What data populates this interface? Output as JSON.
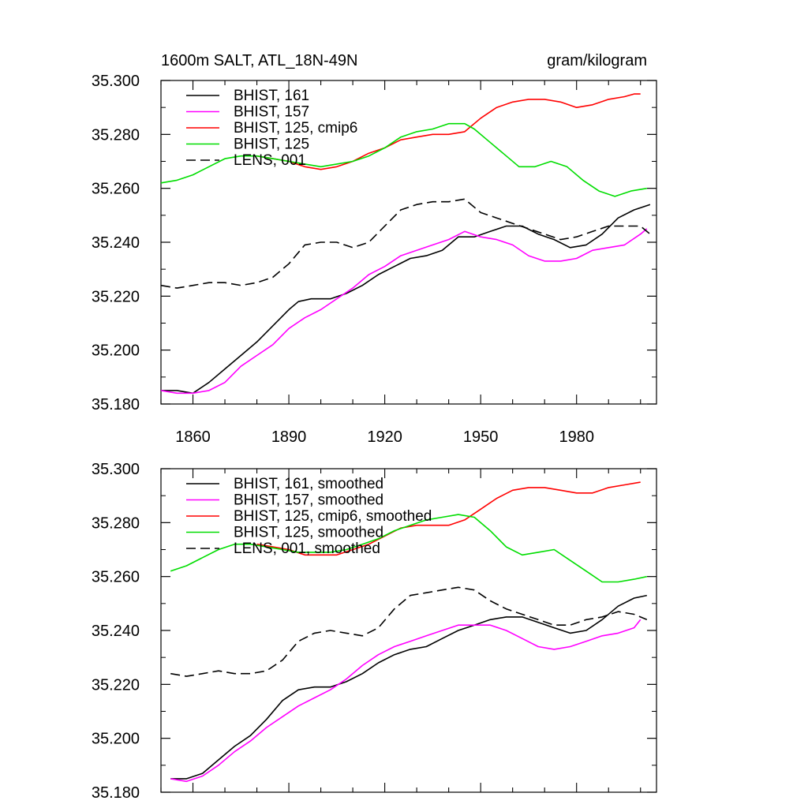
{
  "chart_data": [
    {
      "type": "line",
      "title_left": "1600m SALT, ATL_18N-49N",
      "title_right": "gram/kilogram",
      "xlim": [
        1850,
        2005
      ],
      "ylim": [
        35.18,
        35.3
      ],
      "yticks": [
        "35.180",
        "35.200",
        "35.220",
        "35.240",
        "35.260",
        "35.280",
        "35.300"
      ],
      "xticks": [
        "1860",
        "1890",
        "1920",
        "1950",
        "1980"
      ],
      "series": [
        {
          "name": "BHIST, 161",
          "color": "#000000",
          "dash": false,
          "x": [
            1850,
            1855,
            1860,
            1865,
            1870,
            1875,
            1880,
            1885,
            1890,
            1893,
            1897,
            1900,
            1903,
            1908,
            1913,
            1918,
            1923,
            1928,
            1933,
            1938,
            1943,
            1948,
            1953,
            1958,
            1963,
            1968,
            1973,
            1978,
            1983,
            1988,
            1993,
            1998,
            2003
          ],
          "y": [
            35.185,
            35.185,
            35.184,
            35.188,
            35.193,
            35.198,
            35.203,
            35.209,
            35.215,
            35.218,
            35.219,
            35.219,
            35.219,
            35.221,
            35.224,
            35.228,
            35.231,
            35.234,
            35.235,
            35.237,
            35.242,
            35.242,
            35.244,
            35.246,
            35.246,
            35.243,
            35.241,
            35.238,
            35.239,
            35.243,
            35.249,
            35.252,
            35.254
          ]
        },
        {
          "name": "BHIST, 157",
          "color": "#ff00ff",
          "dash": false,
          "x": [
            1850,
            1855,
            1860,
            1865,
            1870,
            1875,
            1880,
            1885,
            1890,
            1895,
            1900,
            1905,
            1910,
            1915,
            1920,
            1925,
            1930,
            1935,
            1940,
            1945,
            1950,
            1955,
            1960,
            1965,
            1970,
            1975,
            1980,
            1985,
            1990,
            1995,
            2000,
            2002
          ],
          "y": [
            35.185,
            35.184,
            35.184,
            35.185,
            35.188,
            35.194,
            35.198,
            35.202,
            35.208,
            35.212,
            35.215,
            35.219,
            35.223,
            35.228,
            35.231,
            35.235,
            35.237,
            35.239,
            35.241,
            35.244,
            35.242,
            35.241,
            35.239,
            35.235,
            35.233,
            35.233,
            35.234,
            35.237,
            35.238,
            35.239,
            35.243,
            35.245
          ]
        },
        {
          "name": "BHIST, 125, cmip6",
          "color": "#ff0000",
          "dash": false,
          "x": [
            1880,
            1885,
            1890,
            1895,
            1900,
            1905,
            1910,
            1915,
            1920,
            1925,
            1930,
            1935,
            1940,
            1945,
            1950,
            1955,
            1960,
            1965,
            1970,
            1975,
            1980,
            1985,
            1990,
            1995,
            1998,
            2000
          ],
          "y": [
            35.272,
            35.271,
            35.27,
            35.268,
            35.267,
            35.268,
            35.27,
            35.273,
            35.275,
            35.278,
            35.279,
            35.28,
            35.28,
            35.281,
            35.286,
            35.29,
            35.292,
            35.293,
            35.293,
            35.292,
            35.29,
            35.291,
            35.293,
            35.294,
            35.295,
            35.295
          ]
        },
        {
          "name": "BHIST, 125",
          "color": "#00dd00",
          "dash": false,
          "x": [
            1850,
            1855,
            1860,
            1865,
            1870,
            1875,
            1880,
            1885,
            1890,
            1895,
            1900,
            1905,
            1910,
            1915,
            1920,
            1925,
            1930,
            1935,
            1940,
            1945,
            1948,
            1952,
            1957,
            1962,
            1967,
            1972,
            1977,
            1982,
            1987,
            1992,
            1997,
            2002
          ],
          "y": [
            35.262,
            35.263,
            35.265,
            35.268,
            35.271,
            35.272,
            35.272,
            35.271,
            35.27,
            35.269,
            35.268,
            35.269,
            35.27,
            35.272,
            35.275,
            35.279,
            35.281,
            35.282,
            35.284,
            35.284,
            35.282,
            35.278,
            35.273,
            35.268,
            35.268,
            35.27,
            35.268,
            35.263,
            35.259,
            35.257,
            35.259,
            35.26
          ]
        },
        {
          "name": "LENS, 001",
          "color": "#000000",
          "dash": true,
          "x": [
            1850,
            1855,
            1860,
            1865,
            1870,
            1875,
            1880,
            1885,
            1890,
            1895,
            1900,
            1905,
            1910,
            1915,
            1920,
            1925,
            1930,
            1935,
            1940,
            1945,
            1950,
            1955,
            1960,
            1965,
            1970,
            1975,
            1980,
            1985,
            1990,
            1995,
            2000,
            2003
          ],
          "y": [
            35.224,
            35.223,
            35.224,
            35.225,
            35.225,
            35.224,
            35.225,
            35.227,
            35.232,
            35.239,
            35.24,
            35.24,
            35.238,
            35.24,
            35.246,
            35.252,
            35.254,
            35.255,
            35.255,
            35.256,
            35.251,
            35.249,
            35.247,
            35.245,
            35.243,
            35.241,
            35.242,
            35.244,
            35.246,
            35.246,
            35.246,
            35.243
          ]
        }
      ]
    },
    {
      "type": "line",
      "xlim": [
        1850,
        2005
      ],
      "ylim": [
        35.18,
        35.3
      ],
      "yticks": [
        "35.180",
        "35.200",
        "35.220",
        "35.240",
        "35.260",
        "35.280",
        "35.300"
      ],
      "series": [
        {
          "name": "BHIST, 161, smoothed",
          "color": "#000000",
          "dash": false,
          "x": [
            1853,
            1858,
            1863,
            1868,
            1873,
            1878,
            1883,
            1888,
            1893,
            1898,
            1903,
            1908,
            1913,
            1918,
            1923,
            1928,
            1933,
            1938,
            1943,
            1948,
            1953,
            1958,
            1963,
            1968,
            1973,
            1978,
            1983,
            1988,
            1993,
            1998,
            2002
          ],
          "y": [
            35.185,
            35.185,
            35.187,
            35.192,
            35.197,
            35.201,
            35.207,
            35.214,
            35.218,
            35.219,
            35.219,
            35.221,
            35.224,
            35.228,
            35.231,
            35.233,
            35.234,
            35.237,
            35.24,
            35.242,
            35.244,
            35.245,
            35.245,
            35.243,
            35.241,
            35.239,
            35.24,
            35.244,
            35.249,
            35.252,
            35.253
          ]
        },
        {
          "name": "BHIST, 157, smoothed",
          "color": "#ff00ff",
          "dash": false,
          "x": [
            1853,
            1858,
            1863,
            1868,
            1873,
            1878,
            1883,
            1888,
            1893,
            1898,
            1903,
            1908,
            1913,
            1918,
            1923,
            1928,
            1933,
            1938,
            1943,
            1948,
            1953,
            1958,
            1963,
            1968,
            1973,
            1978,
            1983,
            1988,
            1993,
            1998,
            2000
          ],
          "y": [
            35.185,
            35.184,
            35.186,
            35.19,
            35.195,
            35.199,
            35.204,
            35.208,
            35.212,
            35.215,
            35.218,
            35.222,
            35.227,
            35.231,
            35.234,
            35.236,
            35.238,
            35.24,
            35.242,
            35.242,
            35.242,
            35.24,
            35.237,
            35.234,
            35.233,
            35.234,
            35.236,
            35.238,
            35.239,
            35.241,
            35.244
          ]
        },
        {
          "name": "BHIST, 125, cmip6, smoothed",
          "color": "#ff0000",
          "dash": false,
          "x": [
            1880,
            1885,
            1890,
            1895,
            1900,
            1905,
            1910,
            1915,
            1920,
            1925,
            1930,
            1935,
            1940,
            1945,
            1950,
            1955,
            1960,
            1965,
            1970,
            1975,
            1980,
            1985,
            1990,
            1995,
            2000
          ],
          "y": [
            35.272,
            35.271,
            35.27,
            35.268,
            35.268,
            35.268,
            35.27,
            35.272,
            35.275,
            35.278,
            35.279,
            35.279,
            35.279,
            35.281,
            35.285,
            35.289,
            35.292,
            35.293,
            35.293,
            35.292,
            35.291,
            35.291,
            35.293,
            35.294,
            35.295
          ]
        },
        {
          "name": "BHIST, 125, smoothed",
          "color": "#00dd00",
          "dash": false,
          "x": [
            1853,
            1858,
            1863,
            1868,
            1873,
            1878,
            1883,
            1888,
            1893,
            1898,
            1903,
            1908,
            1913,
            1918,
            1923,
            1928,
            1933,
            1938,
            1943,
            1948,
            1953,
            1958,
            1963,
            1968,
            1973,
            1978,
            1983,
            1988,
            1993,
            1998,
            2002
          ],
          "y": [
            35.262,
            35.264,
            35.267,
            35.27,
            35.272,
            35.272,
            35.271,
            35.27,
            35.269,
            35.269,
            35.269,
            35.27,
            35.272,
            35.274,
            35.277,
            35.279,
            35.281,
            35.282,
            35.283,
            35.282,
            35.277,
            35.271,
            35.268,
            35.269,
            35.27,
            35.266,
            35.262,
            35.258,
            35.258,
            35.259,
            35.26
          ]
        },
        {
          "name": "LENS, 001, smoothed",
          "color": "#000000",
          "dash": true,
          "x": [
            1853,
            1858,
            1863,
            1868,
            1873,
            1878,
            1883,
            1888,
            1893,
            1898,
            1903,
            1908,
            1913,
            1918,
            1923,
            1928,
            1933,
            1938,
            1943,
            1948,
            1953,
            1958,
            1963,
            1968,
            1973,
            1978,
            1983,
            1988,
            1993,
            1998,
            2002
          ],
          "y": [
            35.224,
            35.223,
            35.224,
            35.225,
            35.224,
            35.224,
            35.225,
            35.229,
            35.236,
            35.239,
            35.24,
            35.239,
            35.238,
            35.241,
            35.248,
            35.253,
            35.254,
            35.255,
            35.256,
            35.255,
            35.251,
            35.248,
            35.246,
            35.244,
            35.242,
            35.242,
            35.244,
            35.245,
            35.247,
            35.246,
            35.244
          ]
        }
      ]
    }
  ]
}
